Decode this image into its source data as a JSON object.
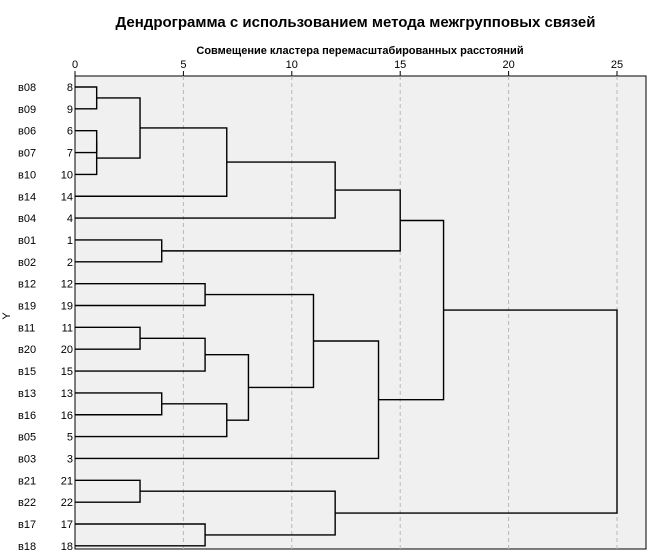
{
  "chart_data": {
    "type": "dendrogram",
    "title": "Дендрограмма с использованием метода межгрупповых связей",
    "xlabel": "Совмещение кластера перемасштабированных расстояний",
    "ylabel": "Y",
    "xlim": [
      0,
      25
    ],
    "xticks": [
      "0",
      "5",
      "10",
      "15",
      "20",
      "25"
    ],
    "grid": true,
    "leaves": [
      {
        "case": "в08",
        "num": "8"
      },
      {
        "case": "в09",
        "num": "9"
      },
      {
        "case": "в06",
        "num": "6"
      },
      {
        "case": "в07",
        "num": "7"
      },
      {
        "case": "в10",
        "num": "10"
      },
      {
        "case": "в14",
        "num": "14"
      },
      {
        "case": "в04",
        "num": "4"
      },
      {
        "case": "в01",
        "num": "1"
      },
      {
        "case": "в02",
        "num": "2"
      },
      {
        "case": "в12",
        "num": "12"
      },
      {
        "case": "в19",
        "num": "19"
      },
      {
        "case": "в11",
        "num": "11"
      },
      {
        "case": "в20",
        "num": "20"
      },
      {
        "case": "в15",
        "num": "15"
      },
      {
        "case": "в13",
        "num": "13"
      },
      {
        "case": "в16",
        "num": "16"
      },
      {
        "case": "в05",
        "num": "5"
      },
      {
        "case": "в03",
        "num": "3"
      },
      {
        "case": "в21",
        "num": "21"
      },
      {
        "case": "в22",
        "num": "22"
      },
      {
        "case": "в17",
        "num": "17"
      },
      {
        "case": "в18",
        "num": "18"
      }
    ],
    "merges": [
      {
        "a": "L0",
        "b": "L1",
        "h": 1
      },
      {
        "a": "L2",
        "b": "L3",
        "h": 1
      },
      {
        "a": "N1",
        "b": "L4",
        "h": 1
      },
      {
        "a": "N0",
        "b": "N2",
        "h": 3
      },
      {
        "a": "N3",
        "b": "L5",
        "h": 7
      },
      {
        "a": "N4",
        "b": "L6",
        "h": 12
      },
      {
        "a": "L7",
        "b": "L8",
        "h": 4
      },
      {
        "a": "N5",
        "b": "N6",
        "h": 15
      },
      {
        "a": "L9",
        "b": "L10",
        "h": 6
      },
      {
        "a": "L11",
        "b": "L12",
        "h": 3
      },
      {
        "a": "N9",
        "b": "L13",
        "h": 6
      },
      {
        "a": "L14",
        "b": "L15",
        "h": 4
      },
      {
        "a": "N11",
        "b": "L16",
        "h": 7
      },
      {
        "a": "N10",
        "b": "N12",
        "h": 8
      },
      {
        "a": "N8",
        "b": "N13",
        "h": 11
      },
      {
        "a": "N14",
        "b": "L17",
        "h": 14
      },
      {
        "a": "N7",
        "b": "N15",
        "h": 17
      },
      {
        "a": "L18",
        "b": "L19",
        "h": 3
      },
      {
        "a": "L20",
        "b": "L21",
        "h": 6
      },
      {
        "a": "N17",
        "b": "N18",
        "h": 12
      },
      {
        "a": "N16",
        "b": "N19",
        "h": 25
      }
    ]
  }
}
